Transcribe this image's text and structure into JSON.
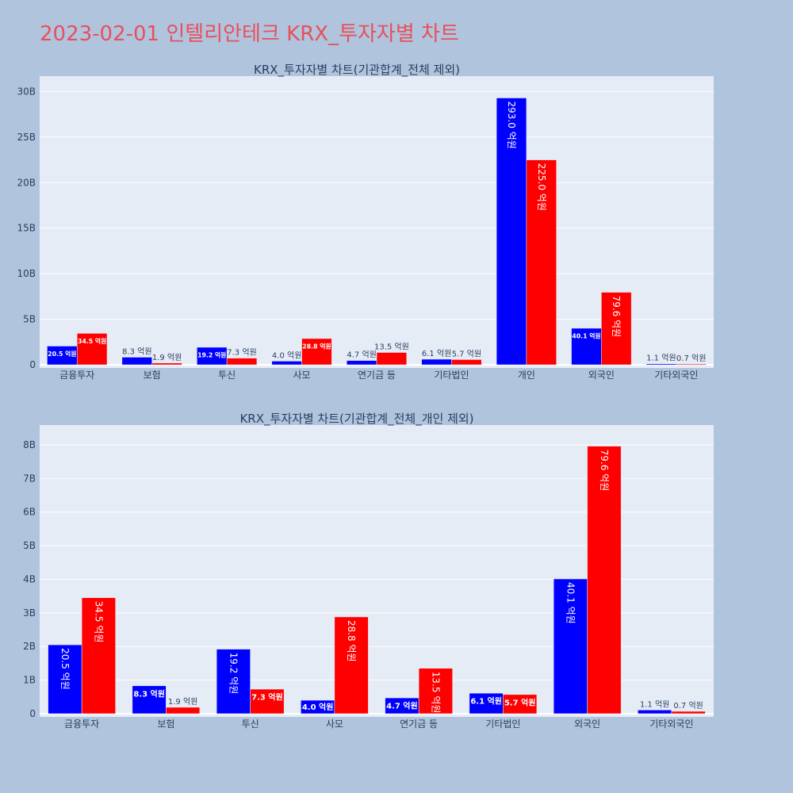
{
  "title": "2023-02-01 인텔리안테크 KRX_투자자별 차트",
  "colors": {
    "background": "#b0c4de",
    "plot_bg": "#e5ecf6",
    "title": "#e8505b",
    "series_a": "#0000ff",
    "series_b": "#ff0000"
  },
  "chart_data": [
    {
      "type": "bar",
      "title": "KRX_투자자별 차트(기관합계_전체 제외)",
      "categories": [
        "금융투자",
        "보험",
        "투신",
        "사모",
        "연기금 등",
        "기타법인",
        "개인",
        "외국인",
        "기타외국인"
      ],
      "series": [
        {
          "color": "#0000ff",
          "values": [
            2050000000,
            830000000,
            1920000000,
            400000000,
            470000000,
            610000000,
            29300000000,
            4010000000,
            110000000
          ],
          "labels": [
            "20.5 억원",
            "8.3 억원",
            "19.2 억원",
            "4.0 억원",
            "4.7 억원",
            "6.1 억원",
            "293.0 억원",
            "40.1 억원",
            "1.1 억원"
          ]
        },
        {
          "color": "#ff0000",
          "values": [
            3450000000,
            190000000,
            730000000,
            2880000000,
            1350000000,
            570000000,
            22500000000,
            7960000000,
            70000000
          ],
          "labels": [
            "34.5 억원",
            "1.9 억원",
            "7.3 억원",
            "28.8 억원",
            "13.5 억원",
            "5.7 억원",
            "225.0 억원",
            "79.6 억원",
            "0.7 억원"
          ]
        }
      ],
      "ylim": [
        0,
        31000000000
      ],
      "yticks": [
        0,
        5000000000,
        10000000000,
        15000000000,
        20000000000,
        25000000000,
        30000000000
      ],
      "ytick_labels": [
        "0",
        "5B",
        "10B",
        "15B",
        "20B",
        "25B",
        "30B"
      ],
      "grid": true
    },
    {
      "type": "bar",
      "title": "KRX_투자자별 차트(기관합계_전체_개인 제외)",
      "categories": [
        "금융투자",
        "보험",
        "투신",
        "사모",
        "연기금 등",
        "기타법인",
        "외국인",
        "기타외국인"
      ],
      "series": [
        {
          "color": "#0000ff",
          "values": [
            2050000000,
            830000000,
            1920000000,
            400000000,
            470000000,
            610000000,
            4010000000,
            110000000
          ],
          "labels": [
            "20.5 억원",
            "8.3 억원",
            "19.2 억원",
            "4.0 억원",
            "4.7 억원",
            "6.1 억원",
            "40.1 억원",
            "1.1 억원"
          ]
        },
        {
          "color": "#ff0000",
          "values": [
            3450000000,
            190000000,
            730000000,
            2880000000,
            1350000000,
            570000000,
            7960000000,
            70000000
          ],
          "labels": [
            "34.5 억원",
            "1.9 억원",
            "7.3 억원",
            "28.8 억원",
            "13.5 억원",
            "5.7 억원",
            "79.6 억원",
            "0.7 억원"
          ]
        }
      ],
      "ylim": [
        0,
        8400000000
      ],
      "yticks": [
        0,
        1000000000,
        2000000000,
        3000000000,
        4000000000,
        5000000000,
        6000000000,
        7000000000,
        8000000000
      ],
      "ytick_labels": [
        "0",
        "1B",
        "2B",
        "3B",
        "4B",
        "5B",
        "6B",
        "7B",
        "8B"
      ],
      "grid": true
    }
  ]
}
